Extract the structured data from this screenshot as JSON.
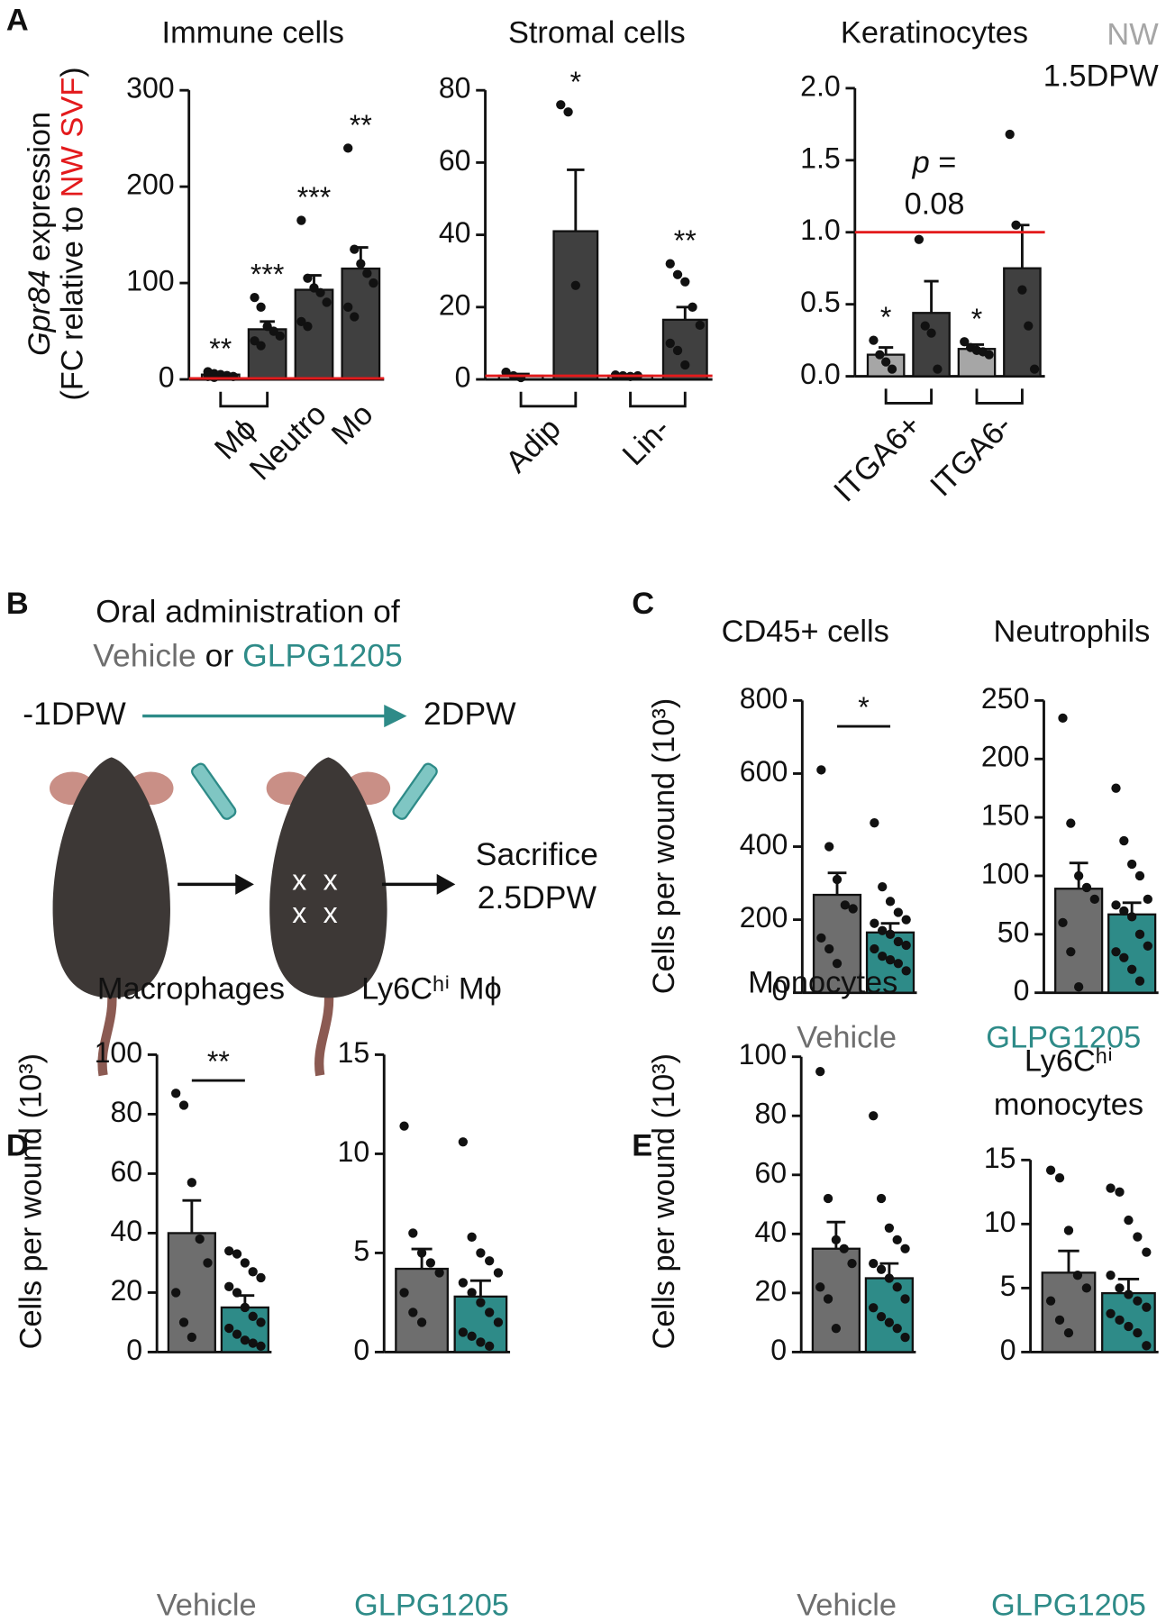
{
  "panels": [
    "A",
    "B",
    "C",
    "D",
    "E"
  ],
  "diagram": {
    "title": "Oral administration of",
    "treatments": [
      "Vehicle",
      "or",
      "GLPG1205"
    ],
    "start": "-1DPW",
    "end": "2DPW",
    "outcome": [
      "Sacrifice",
      "2.5DPW"
    ],
    "wound_mark": "x"
  },
  "chart_data": [
    {
      "type": "bar",
      "title": "Immune cells",
      "ylabel": [
        "Gpr84",
        " expression",
        "(FC relative to ",
        "NW SVF",
        ")"
      ],
      "ylim": [
        0,
        300
      ],
      "yticks": [
        0,
        100,
        200,
        300
      ],
      "ref_line": {
        "value": 1,
        "color": "#e31a1c"
      },
      "categories": [
        "Mϕ",
        null,
        "Neutro",
        "Mo"
      ],
      "annotations": [
        "**",
        "***",
        "***",
        "**"
      ],
      "series": [
        {
          "color": "#a6a6a6",
          "values": [
            5,
            null,
            null,
            null
          ],
          "errors": [
            1,
            null,
            null,
            null
          ],
          "points": [
            [
              8,
              6,
              5,
              4,
              3,
              3,
              2
            ],
            null,
            null,
            null
          ]
        },
        {
          "color": "#404040",
          "values": [
            null,
            52,
            93,
            115
          ],
          "errors": [
            null,
            8,
            15,
            22
          ],
          "points": [
            null,
            [
              85,
              75,
              55,
              50,
              45,
              40,
              35
            ],
            [
              165,
              105,
              95,
              90,
              80,
              60,
              55
            ],
            [
              240,
              135,
              120,
              110,
              100,
              75,
              65
            ]
          ]
        }
      ]
    },
    {
      "type": "bar",
      "title": "Stromal cells",
      "ylim": [
        0,
        80
      ],
      "yticks": [
        0,
        20,
        40,
        60,
        80
      ],
      "ref_line": {
        "value": 1,
        "color": "#e31a1c"
      },
      "categories": [
        "Adip",
        null,
        "Lin-",
        null
      ],
      "annotations": [
        null,
        "*",
        null,
        "**"
      ],
      "series": [
        {
          "color": "#a6a6a6",
          "values": [
            1,
            null,
            1,
            null
          ],
          "errors": [
            0.5,
            null,
            0.3,
            null
          ],
          "points": [
            [
              2,
              1,
              0.5
            ],
            null,
            [
              1.2,
              1,
              0.8,
              1
            ],
            null
          ]
        },
        {
          "color": "#404040",
          "values": [
            null,
            41,
            null,
            16.5
          ],
          "errors": [
            null,
            17,
            null,
            3.5
          ],
          "points": [
            null,
            [
              76,
              74,
              26
            ],
            null,
            [
              32,
              29,
              27,
              20,
              15,
              10,
              8,
              4
            ]
          ]
        }
      ]
    },
    {
      "type": "bar",
      "title": "Keratinocytes",
      "ylim": [
        0,
        2
      ],
      "yticks": [
        {
          "value": 0,
          "label": "0.0"
        },
        0.5,
        {
          "value": 1,
          "label": "1.0"
        },
        1.5,
        {
          "value": 2,
          "label": "2.0"
        }
      ],
      "ref_line": {
        "value": 1,
        "color": "#e31a1c"
      },
      "note": [
        "p",
        " =",
        "0.08"
      ],
      "categories": [
        "ITGA6+",
        null,
        "ITGA6-",
        null
      ],
      "annotations": [
        "*",
        null,
        "*",
        null
      ],
      "series": [
        {
          "name": "NW",
          "color": "#a6a6a6",
          "values": [
            0.15,
            null,
            0.19,
            null
          ],
          "errors": [
            0.05,
            null,
            0.03,
            null
          ],
          "points": [
            [
              0.25,
              0.15,
              0.1,
              0.05
            ],
            null,
            [
              0.24,
              0.2,
              0.18,
              0.17,
              0.15
            ],
            null
          ]
        },
        {
          "name": "1.5DPW",
          "color": "#404040",
          "values": [
            null,
            0.44,
            null,
            0.75
          ],
          "errors": [
            null,
            0.22,
            null,
            0.3
          ],
          "points": [
            null,
            [
              0.95,
              0.35,
              0.3,
              0.05
            ],
            null,
            [
              1.68,
              1.05,
              0.6,
              0.35,
              0.05
            ]
          ]
        }
      ]
    },
    {
      "type": "bar",
      "title": "CD45+ cells",
      "ylabel": "Cells per wound (10³)",
      "ylim": [
        0,
        800
      ],
      "yticks": [
        0,
        200,
        400,
        600,
        800
      ],
      "comparison": "*",
      "series": [
        {
          "name": "Vehicle",
          "color": "#6e6e6e",
          "values": [
            268,
            null
          ],
          "errors": [
            60,
            null
          ],
          "points": [
            [
              610,
              400,
              310,
              240,
              230,
              150,
              120,
              80
            ],
            null
          ]
        },
        {
          "name": "GLPG1205",
          "color": "#2e8b88",
          "values": [
            null,
            165
          ],
          "errors": [
            null,
            25
          ],
          "points": [
            null,
            [
              465,
              290,
              250,
              220,
              200,
              190,
              170,
              160,
              140,
              130,
              120,
              100,
              90,
              80,
              60
            ]
          ]
        }
      ]
    },
    {
      "type": "bar",
      "title": "Neutrophils",
      "ylim": [
        0,
        250
      ],
      "yticks": [
        0,
        50,
        100,
        150,
        200,
        250
      ],
      "series": [
        {
          "color": "#6e6e6e",
          "values": [
            89,
            null
          ],
          "errors": [
            22,
            null
          ],
          "points": [
            [
              235,
              145,
              100,
              90,
              80,
              60,
              35,
              5
            ],
            null
          ]
        },
        {
          "color": "#2e8b88",
          "values": [
            null,
            67
          ],
          "errors": [
            null,
            10
          ],
          "points": [
            null,
            [
              175,
              130,
              110,
              100,
              80,
              75,
              70,
              65,
              50,
              40,
              35,
              30,
              20,
              10
            ]
          ]
        }
      ]
    },
    {
      "type": "bar",
      "title": "Macrophages",
      "ylabel": "Cells per wound (10³)",
      "ylim": [
        0,
        100
      ],
      "yticks": [
        0,
        20,
        40,
        60,
        80,
        100
      ],
      "comparison": "**",
      "series": [
        {
          "name": "Vehicle",
          "color": "#6e6e6e",
          "values": [
            40,
            null
          ],
          "errors": [
            11,
            null
          ],
          "points": [
            [
              87,
              83,
              57,
              38,
              30,
              20,
              10,
              5
            ],
            null
          ]
        },
        {
          "name": "GLPG1205",
          "color": "#2e8b88",
          "values": [
            null,
            15
          ],
          "errors": [
            null,
            4
          ],
          "points": [
            null,
            [
              34,
              33,
              30,
              27,
              25,
              22,
              20,
              15,
              12,
              10,
              8,
              6,
              4,
              3,
              2
            ]
          ]
        }
      ]
    },
    {
      "type": "bar",
      "title": "Ly6Cʰⁱ Mϕ",
      "ylim": [
        0,
        15
      ],
      "yticks": [
        0,
        5,
        10,
        15
      ],
      "series": [
        {
          "color": "#6e6e6e",
          "values": [
            4.2,
            null
          ],
          "errors": [
            1,
            null
          ],
          "points": [
            [
              11.4,
              6,
              5,
              4.5,
              4,
              3,
              2,
              1.5
            ],
            null
          ]
        },
        {
          "color": "#2e8b88",
          "values": [
            null,
            2.8
          ],
          "errors": [
            null,
            0.8
          ],
          "points": [
            null,
            [
              10.6,
              5.8,
              5,
              4.6,
              4,
              3.5,
              3,
              2.5,
              2,
              1.5,
              1,
              0.8,
              0.5,
              0.3
            ]
          ]
        }
      ]
    },
    {
      "type": "bar",
      "title": "Monocytes",
      "ylabel": "Cells per wound (10³)",
      "ylim": [
        0,
        100
      ],
      "yticks": [
        0,
        20,
        40,
        60,
        80,
        100
      ],
      "series": [
        {
          "name": "Vehicle",
          "color": "#6e6e6e",
          "values": [
            35,
            null
          ],
          "errors": [
            9,
            null
          ],
          "points": [
            [
              95,
              52,
              38,
              35,
              30,
              22,
              18,
              8
            ],
            null
          ]
        },
        {
          "name": "GLPG1205",
          "color": "#2e8b88",
          "values": [
            null,
            25
          ],
          "errors": [
            null,
            5
          ],
          "points": [
            null,
            [
              80,
              52,
              42,
              38,
              35,
              30,
              28,
              25,
              22,
              18,
              15,
              12,
              10,
              8,
              5
            ]
          ]
        }
      ]
    },
    {
      "type": "bar",
      "title": [
        "Ly6Cʰⁱ",
        "monocytes"
      ],
      "ylim": [
        0,
        15
      ],
      "yticks": [
        0,
        5,
        10,
        15
      ],
      "series": [
        {
          "color": "#6e6e6e",
          "values": [
            6.2,
            null
          ],
          "errors": [
            1.7,
            null
          ],
          "points": [
            [
              14.2,
              13.6,
              9.5,
              6,
              5,
              4,
              2.5,
              1.5
            ],
            null
          ]
        },
        {
          "color": "#2e8b88",
          "values": [
            null,
            4.6
          ],
          "errors": [
            null,
            1.1
          ],
          "points": [
            null,
            [
              12.8,
              12.5,
              10.3,
              9,
              7.8,
              6,
              5,
              4.5,
              4,
              3.5,
              3,
              2.5,
              2,
              1.5,
              0.5
            ]
          ]
        }
      ]
    }
  ]
}
